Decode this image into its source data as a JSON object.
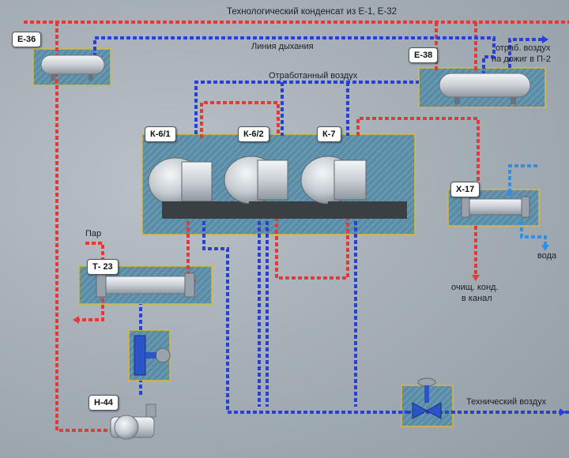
{
  "colors": {
    "hot_line": "#e23a36",
    "cold_line": "#2a3fd6",
    "water_line": "#2f8fe8",
    "panel_fill": "#5e8fa8",
    "panel_border": "#d9b93a",
    "equipment": "#d6dbe0"
  },
  "labels": {
    "condensate_top": "Технологический конденсат из Е-1, Е-32",
    "breathing_line": "Линия дыхания",
    "exhaust_air": "Отработанный воздух",
    "exhaust_to_burn_1": "отраб. воздух",
    "exhaust_to_burn_2": "на дожиг в П-2",
    "steam": "Пар",
    "water": "вода",
    "clean_cond_1": "очищ. конд.",
    "clean_cond_2": "в канал",
    "tech_air": "Технический воздух"
  },
  "equipment_tags": {
    "e36": "Е-36",
    "e38": "Е-38",
    "k61": "К-6/1",
    "k62": "К-6/2",
    "k7": "К-7",
    "x17": "Х-17",
    "t23": "Т- 23",
    "h44": "Н-44"
  }
}
